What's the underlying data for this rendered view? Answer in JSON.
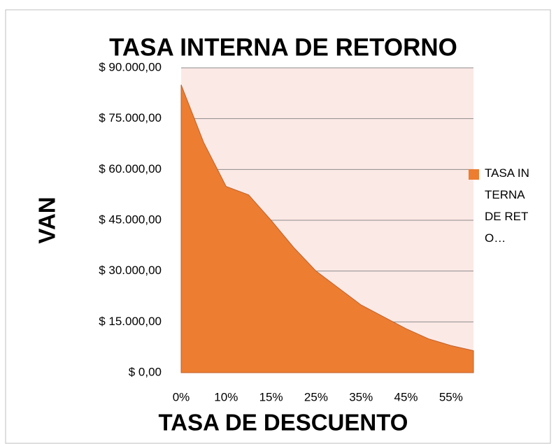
{
  "chart_data": {
    "type": "area",
    "title": "TASA INTERNA DE RETORNO",
    "x_label": "TASA DE DESCUENTO",
    "y_label": "VAN",
    "categories": [
      "0%",
      null,
      "10%",
      null,
      "15%",
      null,
      "25%",
      null,
      "35%",
      null,
      "45%",
      null,
      "55%",
      null
    ],
    "series": [
      {
        "name": "TASA INTERNA DE RETO…",
        "color": "#ed7d31",
        "values": [
          85000,
          68000,
          55000,
          52500,
          45000,
          37000,
          30000,
          25000,
          20000,
          16500,
          13000,
          10000,
          8000,
          6500
        ]
      }
    ],
    "ylim": [
      0,
      90000
    ],
    "yticks": [
      {
        "value": 0,
        "label": "$ 0,00"
      },
      {
        "value": 15000,
        "label": "$ 15.000,00"
      },
      {
        "value": 30000,
        "label": "$ 30.000,00"
      },
      {
        "value": 45000,
        "label": "$ 45.000,00"
      },
      {
        "value": 60000,
        "label": "$ 60.000,00"
      },
      {
        "value": 75000,
        "label": "$ 75.000,00"
      },
      {
        "value": 90000,
        "label": "$ 90.000,00"
      }
    ],
    "grid": true,
    "legend": "right"
  }
}
